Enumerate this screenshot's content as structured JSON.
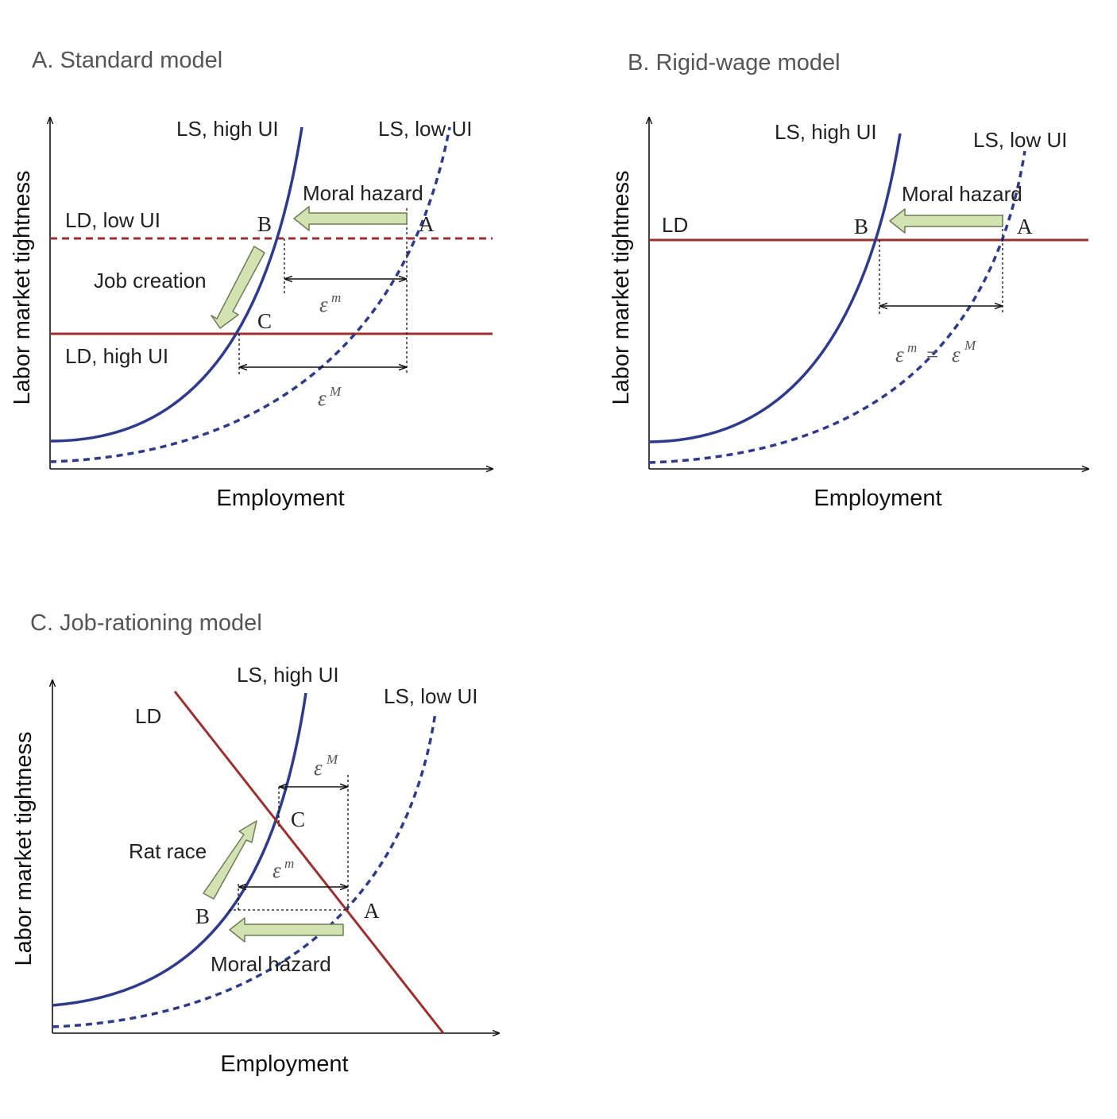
{
  "colors": {
    "ls_curve": "#2e3a8c",
    "ld_line": "#9c2f2f",
    "arrow_fill": "#d2e3b2",
    "arrow_stroke": "#6f7b57",
    "axis": "#111111"
  },
  "panels": {
    "a": {
      "title": "A. Standard model",
      "xlabel": "Employment",
      "ylabel": "Labor market tightness",
      "ls_high": "LS, high UI",
      "ls_low": "LS, low UI",
      "ld_low": "LD, low UI",
      "ld_high": "LD, high UI",
      "moral_hazard": "Moral hazard",
      "job_creation": "Job creation",
      "point_a": "A",
      "point_b": "B",
      "point_c": "C",
      "eps_small": "ε",
      "eps_small_sup": "m",
      "eps_big": "ε",
      "eps_big_sup": "M"
    },
    "b": {
      "title": "B. Rigid-wage model",
      "xlabel": "Employment",
      "ylabel": "Labor market tightness",
      "ls_high": "LS,  high UI",
      "ls_low": "LS, low UI",
      "ld": "LD",
      "moral_hazard": "Moral hazard",
      "point_a": "A",
      "point_b": "B",
      "eps_left": "ε",
      "eps_left_sup": "m",
      "eps_eq": "=",
      "eps_right": "ε",
      "eps_right_sup": "M"
    },
    "c": {
      "title": "C. Job-rationing model",
      "xlabel": "Employment",
      "ylabel": "Labor market tightness",
      "ls_high": "LS, high UI",
      "ls_low": "LS, low UI",
      "ld": "LD",
      "rat_race": "Rat race",
      "moral_hazard": "Moral hazard",
      "point_a": "A",
      "point_b": "B",
      "point_c": "C",
      "eps_big": "ε",
      "eps_big_sup": "M",
      "eps_small": "ε",
      "eps_small_sup": "m"
    }
  }
}
